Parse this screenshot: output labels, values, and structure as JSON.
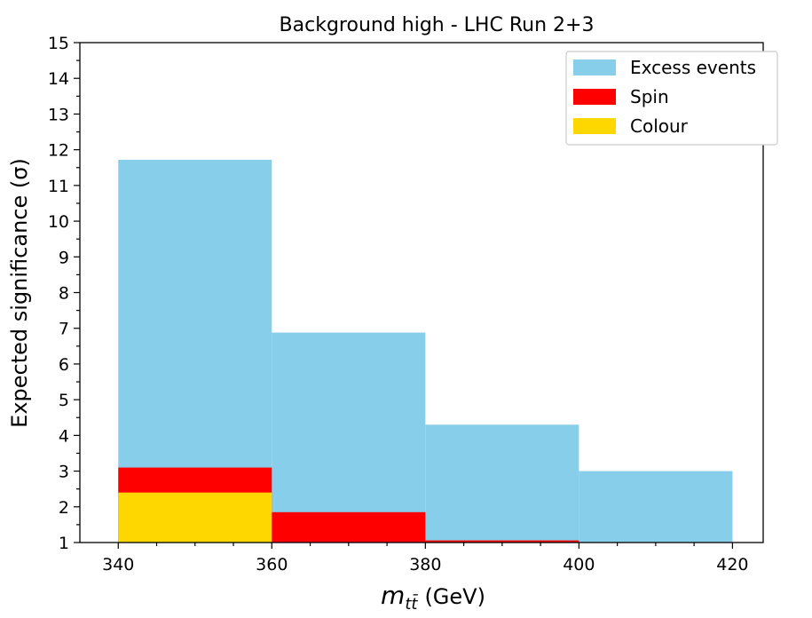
{
  "chart_data": {
    "type": "bar",
    "title": "Background high - LHC Run 2+3",
    "xlabel_var": "m",
    "xlabel_sub": "tt̄",
    "xlabel_unit": "(GeV)",
    "ylabel": "Expected significance (σ)",
    "bin_edges": [
      340,
      360,
      380,
      400,
      420
    ],
    "x_ticks": [
      "340",
      "360",
      "380",
      "400",
      "420"
    ],
    "y_ticks": [
      "1",
      "2",
      "3",
      "4",
      "5",
      "6",
      "7",
      "8",
      "9",
      "10",
      "11",
      "12",
      "13",
      "14",
      "15"
    ],
    "xlim": [
      335,
      424
    ],
    "ylim": [
      1,
      15
    ],
    "baseline": 1,
    "series": [
      {
        "name": "Excess events",
        "color": "#87ceeb",
        "values": [
          11.72,
          6.88,
          4.3,
          3.0
        ]
      },
      {
        "name": "Spin",
        "color": "#ff0000",
        "values": [
          3.1,
          1.85,
          1.06,
          null
        ]
      },
      {
        "name": "Colour",
        "color": "#ffd700",
        "values": [
          2.4,
          null,
          null,
          null
        ]
      }
    ],
    "legend_position": "top-right",
    "grid": false
  }
}
